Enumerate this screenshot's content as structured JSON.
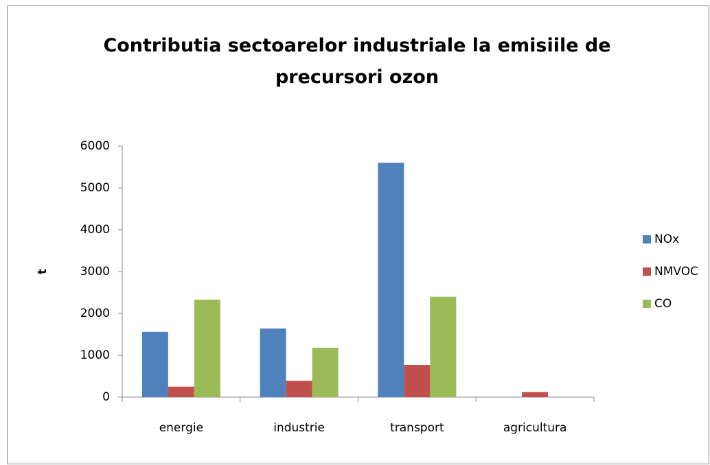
{
  "chart_data": {
    "type": "bar",
    "title": "Contributia sectoarelor industriale la emisiile de precursori ozon",
    "y_label": "t",
    "categories": [
      "energie",
      "industrie",
      "transport",
      "agricultura"
    ],
    "series": [
      {
        "name": "NOx",
        "color": "#4f81bd",
        "values": [
          1560,
          1640,
          5600,
          0
        ]
      },
      {
        "name": "NMVOC",
        "color": "#c0504d",
        "values": [
          250,
          390,
          770,
          120
        ]
      },
      {
        "name": "CO",
        "color": "#9bbb59",
        "values": [
          2330,
          1180,
          2400,
          0
        ]
      }
    ],
    "ylim": [
      0,
      6000
    ],
    "yticks": [
      0,
      1000,
      2000,
      3000,
      4000,
      5000,
      6000
    ],
    "grid": false,
    "legend": "right"
  }
}
